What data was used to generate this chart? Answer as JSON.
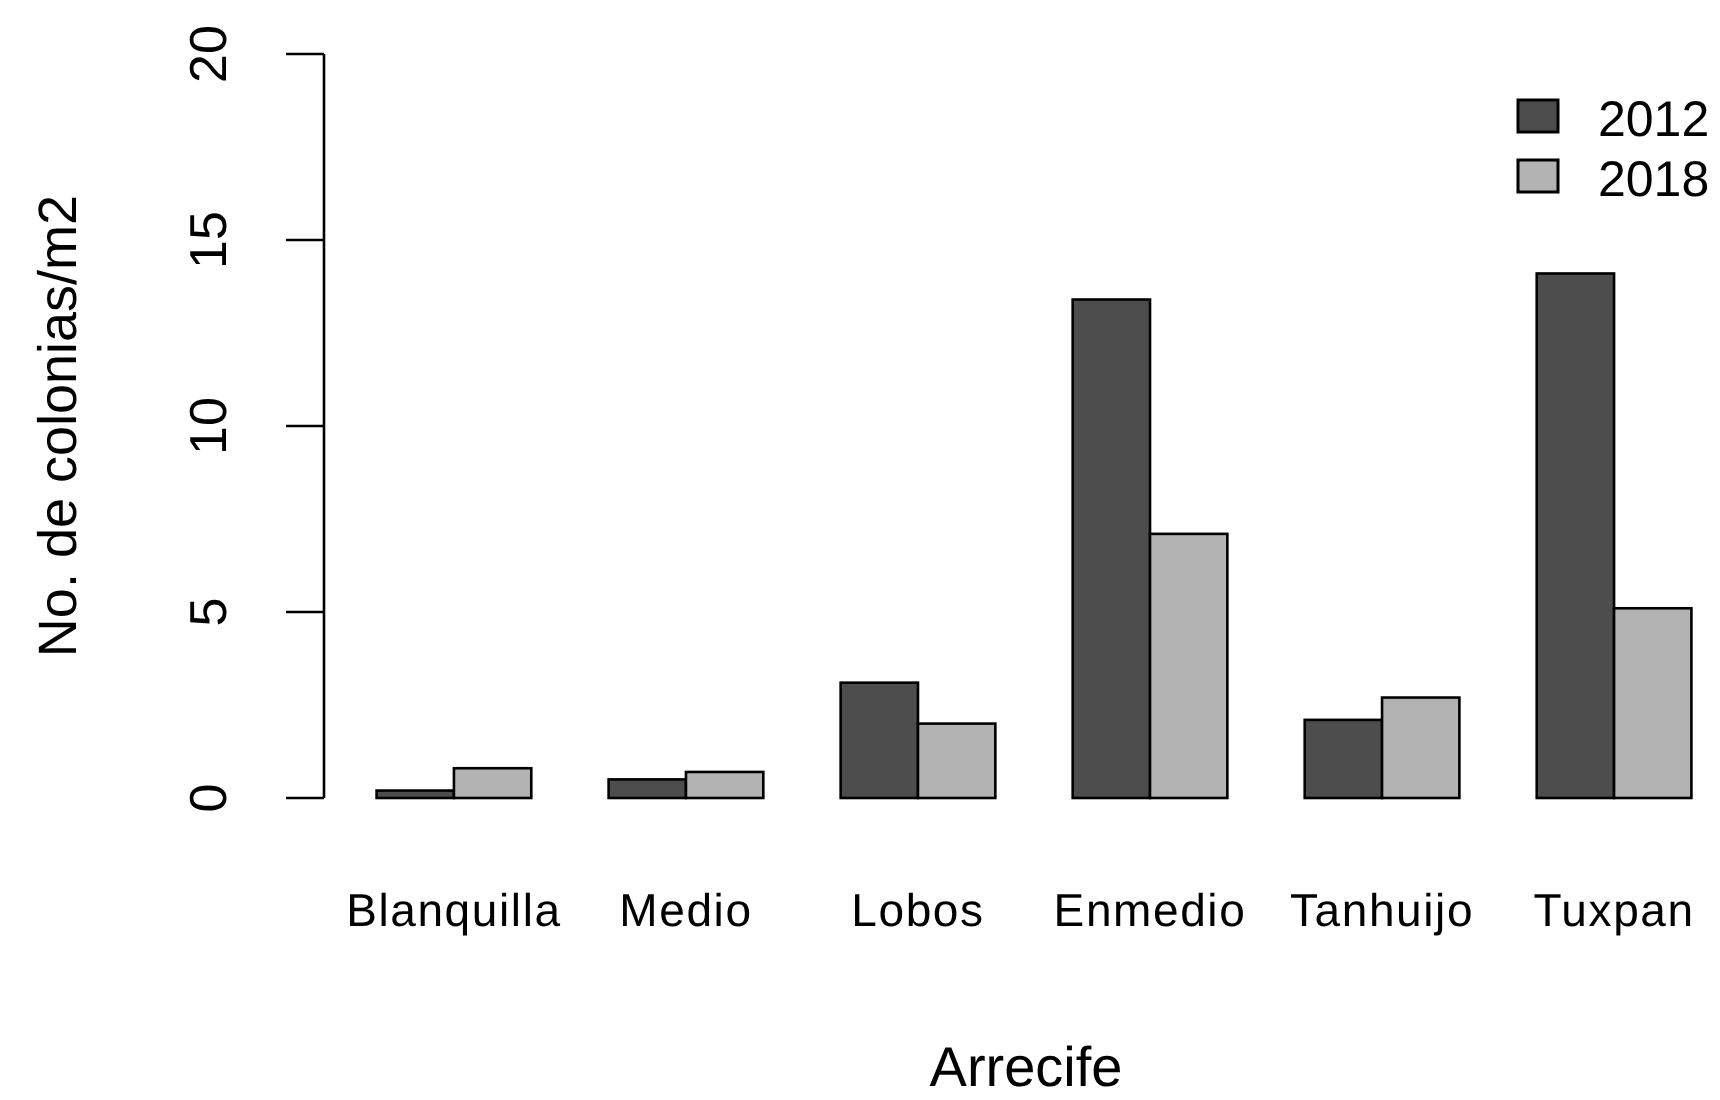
{
  "chart_data": {
    "type": "bar",
    "xlabel": "Arrecife",
    "ylabel": "No. de colonias/m2",
    "categories": [
      "Blanquilla",
      "Medio",
      "Lobos",
      "Enmedio",
      "Tanhuijo",
      "Tuxpan"
    ],
    "series": [
      {
        "name": "2012",
        "color": "#4d4d4d",
        "values": [
          0.2,
          0.5,
          3.1,
          13.4,
          2.1,
          14.1
        ]
      },
      {
        "name": "2018",
        "color": "#b3b3b3",
        "values": [
          0.8,
          0.7,
          2.0,
          7.1,
          2.7,
          5.1
        ]
      }
    ],
    "ylim": [
      0,
      20
    ],
    "yticks": [
      0,
      5,
      10,
      15,
      20
    ],
    "legend": "top right"
  }
}
